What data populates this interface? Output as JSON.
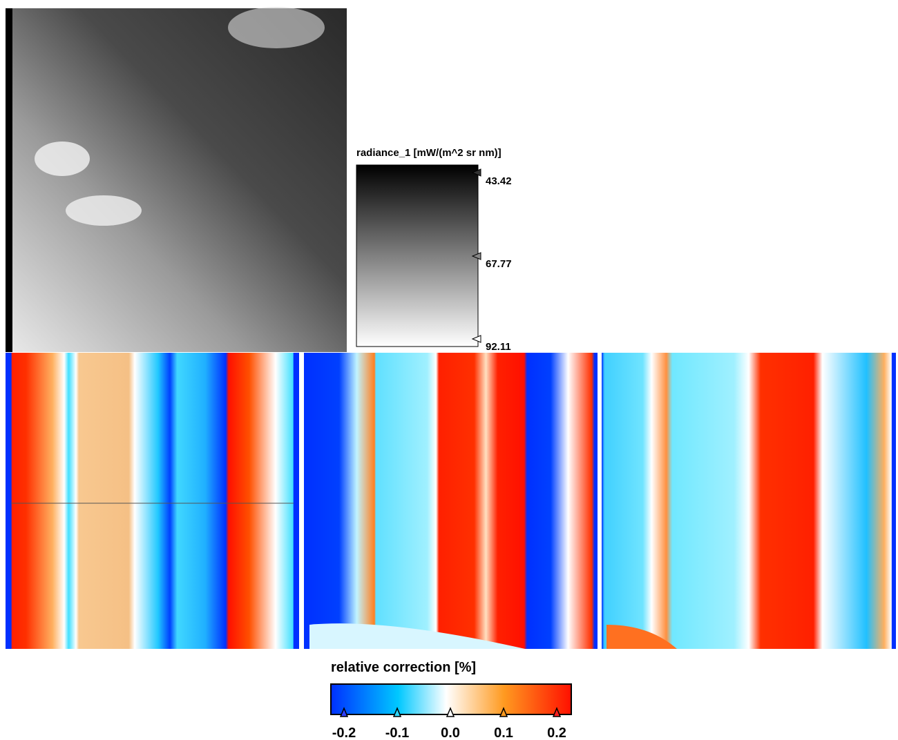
{
  "radiance_legend": {
    "title": "radiance_1 [mW/(m^2 sr nm)]",
    "ticks": [
      "43.42",
      "67.77",
      "92.11"
    ]
  },
  "correction_legend": {
    "title": "relative correction [%]",
    "ticks": [
      "-0.2",
      "-0.1",
      "0.0",
      "0.1",
      "0.2"
    ]
  }
}
